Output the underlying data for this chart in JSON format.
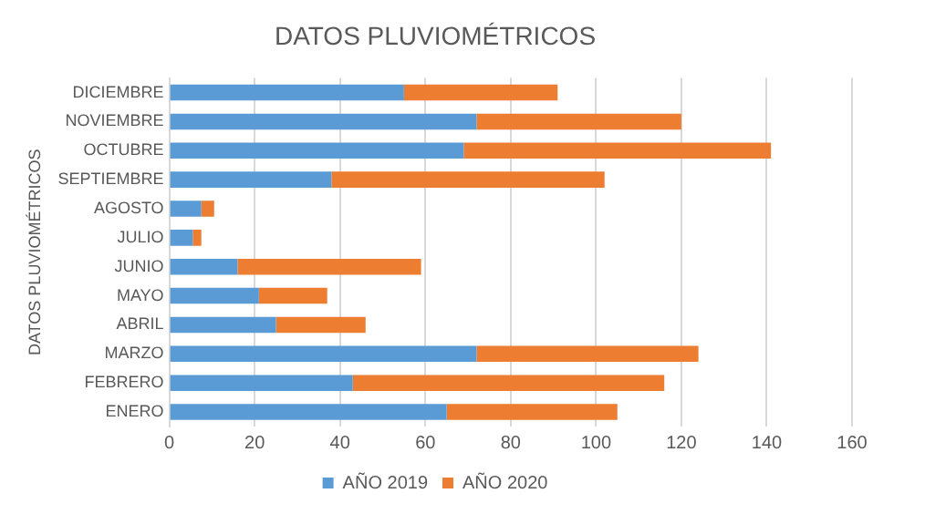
{
  "chart_data": {
    "type": "bar",
    "orientation": "horizontal",
    "stacked": true,
    "title": "DATOS PLUVIOMÉTRICOS",
    "ylabel": "DATOS PLUVIOMÉTRICOS",
    "categories": [
      "DICIEMBRE",
      "NOVIEMBRE",
      "OCTUBRE",
      "SEPTIEMBRE",
      "AGOSTO",
      "JULIO",
      "JUNIO",
      "MAYO",
      "ABRIL",
      "MARZO",
      "FEBRERO",
      "ENERO"
    ],
    "series": [
      {
        "name": "AÑO 2019",
        "color": "#5b9bd5",
        "values": [
          55,
          72,
          69,
          38,
          7.5,
          5.5,
          16,
          21,
          25,
          72,
          43,
          65
        ]
      },
      {
        "name": "AÑO 2020",
        "color": "#ed7d31",
        "values": [
          36,
          48,
          72,
          64,
          3,
          2,
          43,
          16,
          21,
          52,
          73,
          40
        ]
      }
    ],
    "xlim": [
      0,
      160
    ],
    "xticks": [
      0,
      20,
      40,
      60,
      80,
      100,
      120,
      140,
      160
    ],
    "grid": "x",
    "legend": "bottom"
  }
}
